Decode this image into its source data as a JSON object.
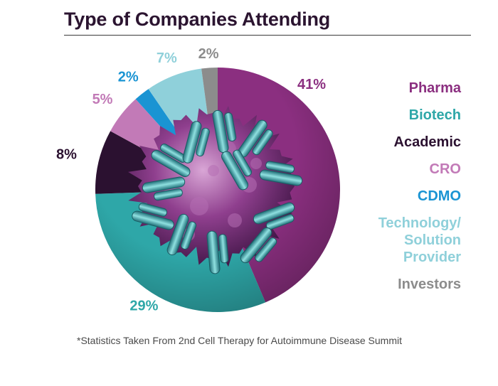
{
  "title": "Type of Companies Attending",
  "footnote": "*Statistics Taken From 2nd Cell Therapy for Autoimmune Disease Summit",
  "colors": {
    "pharma": "#8b2f80",
    "biotech": "#2ea7a8",
    "academic": "#2b1130",
    "cro": "#c27ab7",
    "cdmo": "#1a94d3",
    "technology": "#8fd0da",
    "investors": "#8c8c8c"
  },
  "chart_data": {
    "type": "pie",
    "title": "Type of Companies Attending",
    "slices": [
      {
        "key": "pharma",
        "label": "Pharma",
        "value": 41,
        "value_label": "41%",
        "color": "#8b2f80"
      },
      {
        "key": "biotech",
        "label": "Biotech",
        "value": 29,
        "value_label": "29%",
        "color": "#2ea7a8"
      },
      {
        "key": "academic",
        "label": "Academic",
        "value": 8,
        "value_label": "8%",
        "color": "#2b1130"
      },
      {
        "key": "cro",
        "label": "CRO",
        "value": 5,
        "value_label": "5%",
        "color": "#c27ab7"
      },
      {
        "key": "cdmo",
        "label": "CDMO",
        "value": 2,
        "value_label": "2%",
        "color": "#1a94d3"
      },
      {
        "key": "technology",
        "label": "Technology/ Solution Provider",
        "value": 7,
        "value_label": "7%",
        "color": "#8fd0da"
      },
      {
        "key": "investors",
        "label": "Investors",
        "value": 2,
        "value_label": "2%",
        "color": "#8c8c8c"
      }
    ],
    "legend": [
      {
        "lines": [
          "Pharma"
        ],
        "color": "#8b2f80"
      },
      {
        "lines": [
          "Biotech"
        ],
        "color": "#2ea7a8"
      },
      {
        "lines": [
          "Academic"
        ],
        "color": "#2b1130"
      },
      {
        "lines": [
          "CRO"
        ],
        "color": "#c27ab7"
      },
      {
        "lines": [
          "CDMO"
        ],
        "color": "#1a94d3"
      },
      {
        "lines": [
          "Technology/",
          "Solution",
          "Provider"
        ],
        "color": "#8fd0da"
      },
      {
        "lines": [
          "Investors"
        ],
        "color": "#8c8c8c"
      }
    ],
    "legend_position": "right",
    "center_image": "immune-cell-with-antibodies"
  }
}
